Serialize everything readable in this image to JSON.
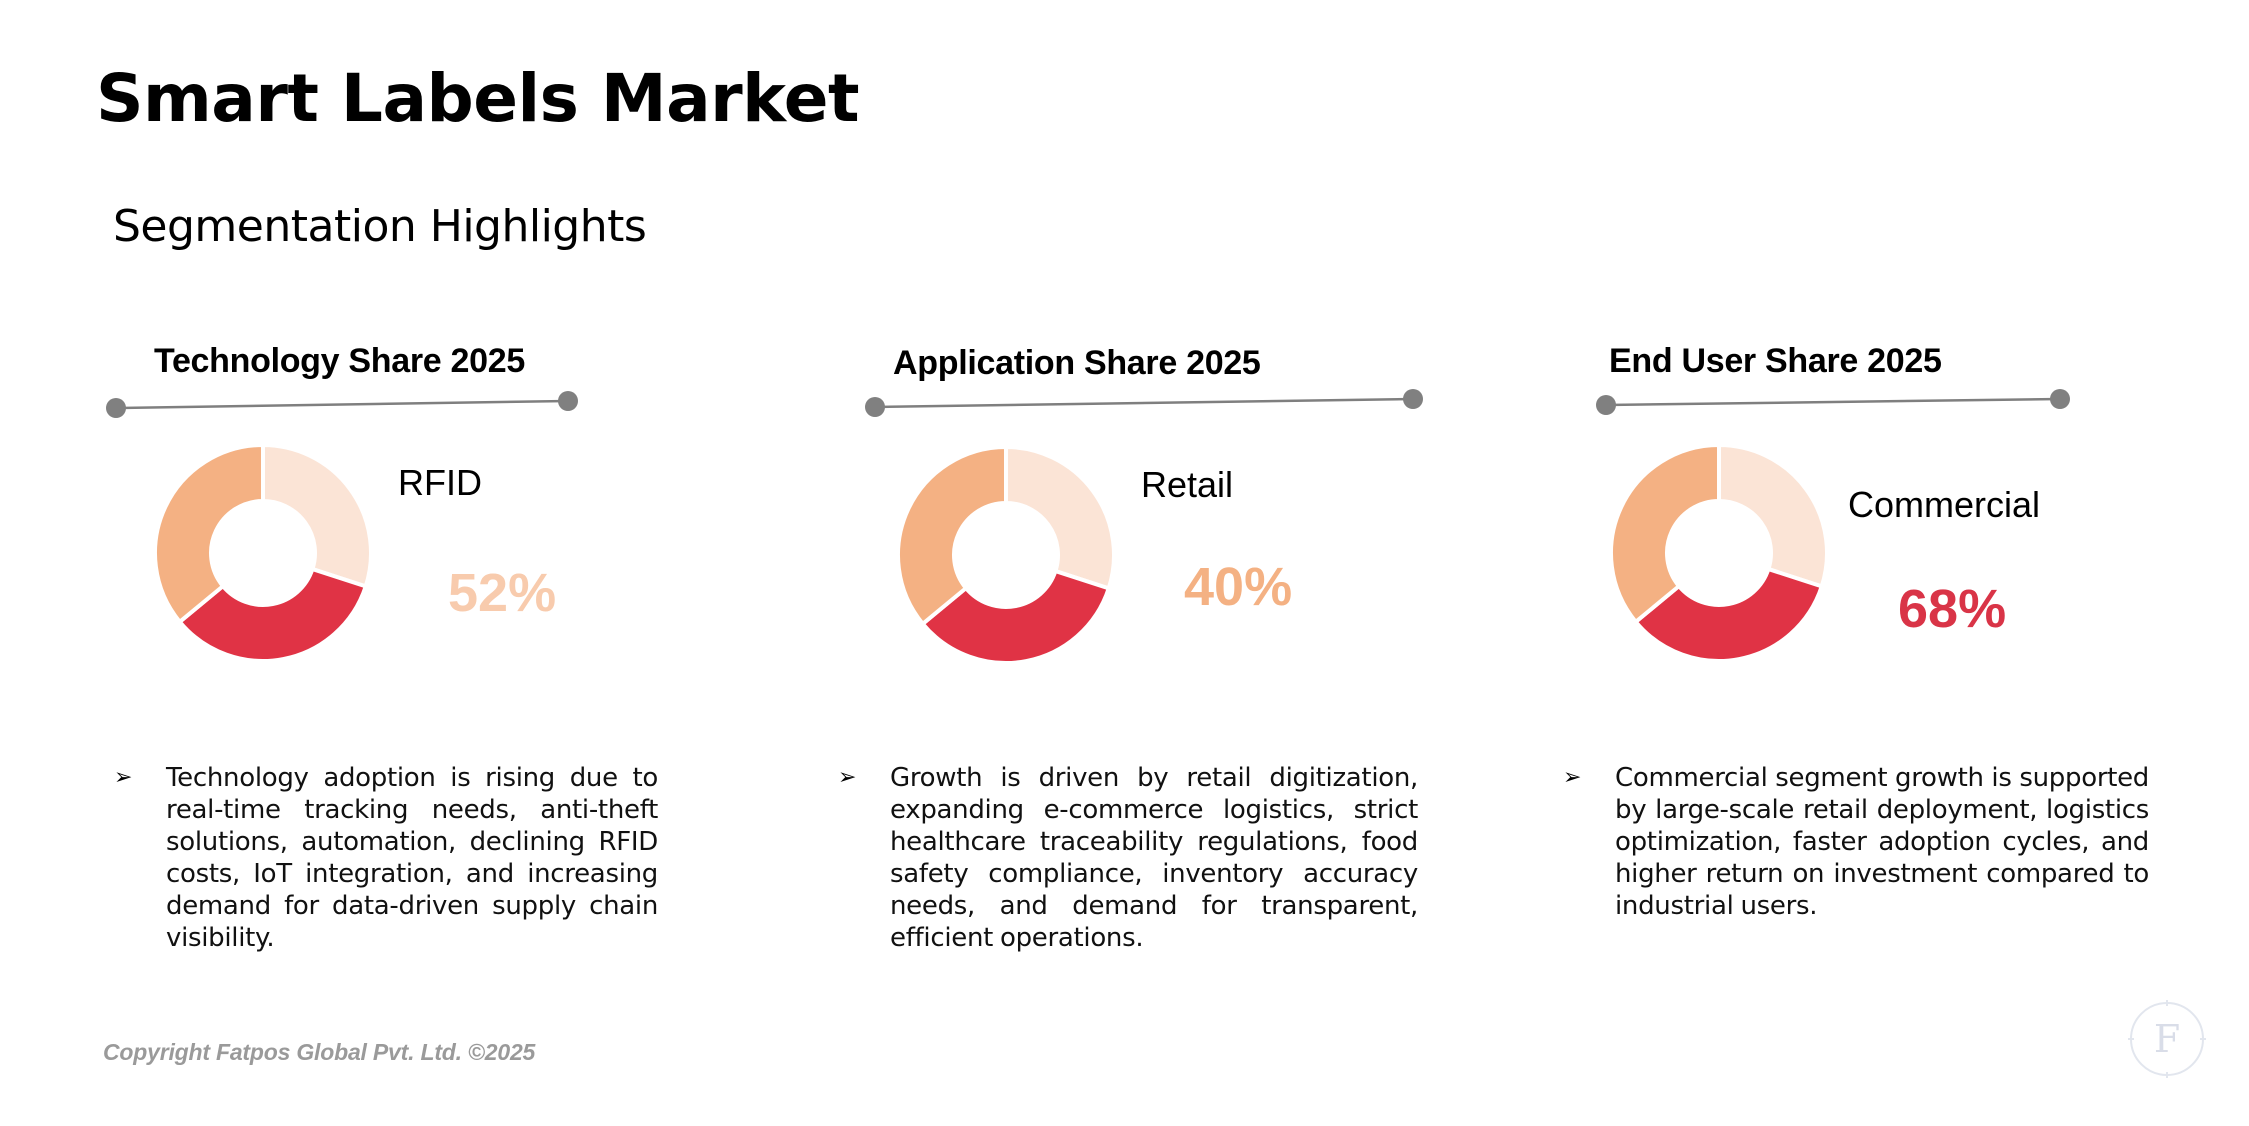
{
  "page": {
    "title": "Smart Labels Market",
    "subtitle": "Segmentation Highlights",
    "copyright": "Copyright Fatpos Global Pvt. Ltd. ©2025",
    "watermark_letter": "F"
  },
  "colors": {
    "light_peach": "#fbe4d6",
    "peach": "#f4b183",
    "red": "#e03345",
    "connector_line": "#7f7f7f",
    "connector_dot": "#808080"
  },
  "panels": [
    {
      "heading": "Technology Share 2025",
      "segment_label": "RFID",
      "segment_value": "52%",
      "value_color": "#f8cbad",
      "bullet_icon": "arrow-bullet-icon",
      "bullet": "Technology adoption is rising due to real-time tracking needs, anti-theft solutions, automation, declining RFID costs, IoT integration, and increasing demand for data-driven supply chain visibility."
    },
    {
      "heading": "Application Share 2025",
      "segment_label": "Retail",
      "segment_value": "40%",
      "value_color": "#f4b183",
      "bullet_icon": "arrow-bullet-icon",
      "bullet": "Growth is driven by retail digitization, expanding e-commerce logistics, strict healthcare traceability regulations, food safety compliance, inventory accuracy needs, and demand for transparent, efficient operations."
    },
    {
      "heading": "End User Share 2025",
      "segment_label": "Commercial",
      "segment_value": "68%",
      "value_color": "#d93447",
      "bullet_icon": "arrow-bullet-icon",
      "bullet": "Commercial segment growth is supported by large-scale retail deployment, logistics optimization, faster adoption cycles, and higher return on investment compared to industrial users."
    }
  ],
  "donut_segments": [
    {
      "share": 0.3,
      "color": "#fbe4d6"
    },
    {
      "share": 0.34,
      "color": "#e03345"
    },
    {
      "share": 0.36,
      "color": "#f4b183"
    }
  ]
}
